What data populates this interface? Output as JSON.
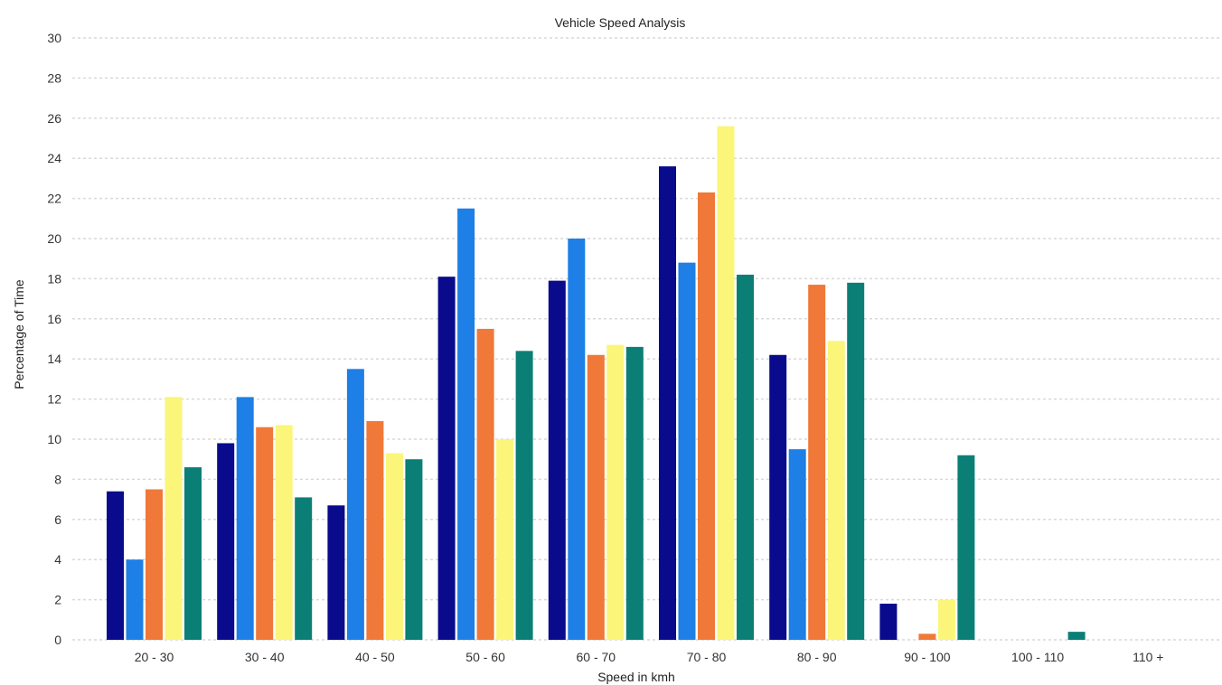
{
  "chart_data": {
    "type": "bar",
    "title": "Vehicle Speed Analysis",
    "xlabel": "Speed in kmh",
    "ylabel": "Percentage of Time",
    "ylim": [
      0,
      30
    ],
    "yticks": [
      0,
      2,
      4,
      6,
      8,
      10,
      12,
      14,
      16,
      18,
      20,
      22,
      24,
      26,
      28,
      30
    ],
    "grid": true,
    "legend": "none",
    "categories": [
      "20 - 30",
      "30 - 40",
      "40 - 50",
      "50 - 60",
      "60 - 70",
      "70 - 80",
      "80 - 90",
      "90 - 100",
      "100 - 110",
      "110 +"
    ],
    "series": [
      {
        "color": "#0a0a8c",
        "values": [
          7.4,
          9.8,
          6.7,
          18.1,
          17.9,
          23.6,
          14.2,
          1.8,
          0,
          0
        ]
      },
      {
        "color": "#1e7fe6",
        "values": [
          4.0,
          12.1,
          13.5,
          21.5,
          20.0,
          18.8,
          9.5,
          0,
          0,
          0
        ]
      },
      {
        "color": "#f07838",
        "values": [
          7.5,
          10.6,
          10.9,
          15.5,
          14.2,
          22.3,
          17.7,
          0.3,
          0,
          0
        ]
      },
      {
        "color": "#fbf57a",
        "values": [
          12.1,
          10.7,
          9.3,
          10.0,
          14.7,
          25.6,
          14.9,
          2.0,
          0,
          0
        ]
      },
      {
        "color": "#0b7f76",
        "values": [
          8.6,
          7.1,
          9.0,
          14.4,
          14.6,
          18.2,
          17.8,
          9.2,
          0.4,
          0
        ]
      }
    ]
  }
}
